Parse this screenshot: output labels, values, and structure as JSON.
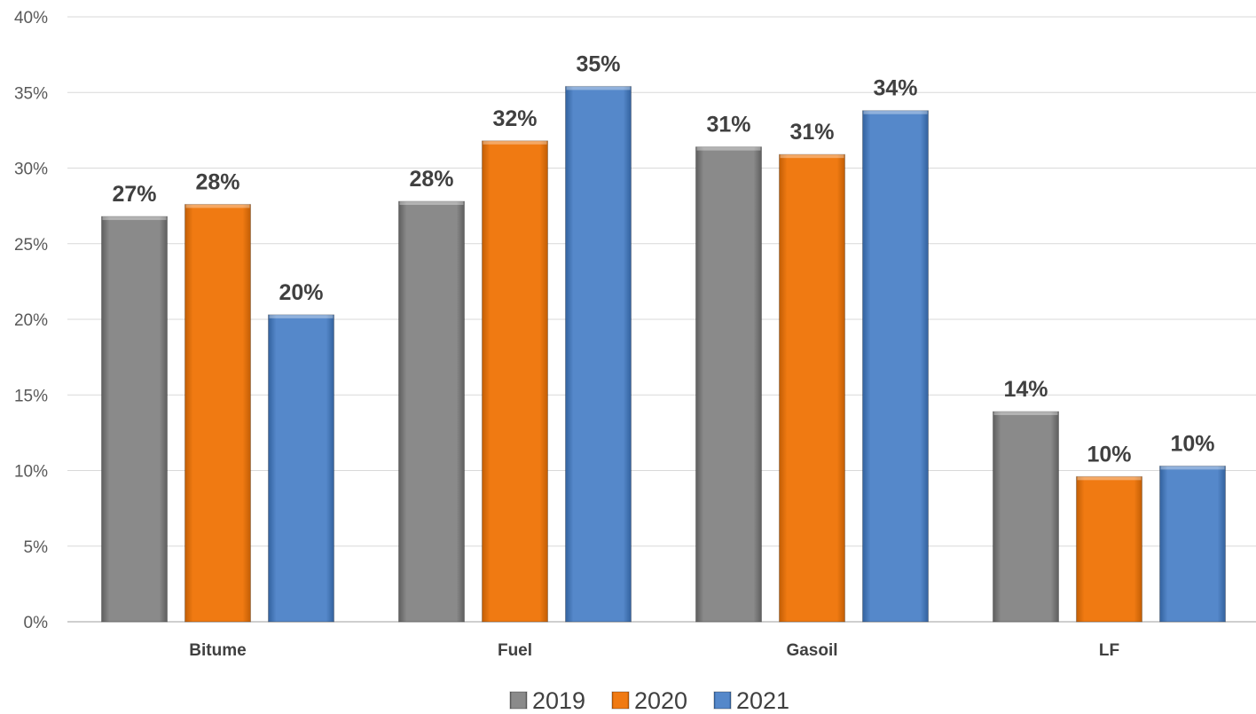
{
  "chart_data": {
    "type": "bar",
    "categories": [
      "Bitume",
      "Fuel",
      "Gasoil",
      "LF"
    ],
    "series": [
      {
        "name": "2019",
        "color": "#7f7f7f",
        "values": [
          0.268,
          0.278,
          0.314,
          0.139
        ],
        "labels": [
          "27%",
          "28%",
          "31%",
          "14%"
        ]
      },
      {
        "name": "2020",
        "color": "#ed7d14",
        "values": [
          0.276,
          0.318,
          0.309,
          0.096
        ],
        "labels": [
          "28%",
          "32%",
          "31%",
          "10%"
        ]
      },
      {
        "name": "2021",
        "color": "#4f83c8",
        "values": [
          0.203,
          0.354,
          0.338,
          0.103
        ],
        "labels": [
          "20%",
          "35%",
          "34%",
          "10%"
        ]
      }
    ],
    "ylim": [
      0,
      0.4
    ],
    "y_ticks": [
      "0%",
      "5%",
      "10%",
      "15%",
      "20%",
      "25%",
      "30%",
      "35%",
      "40%"
    ],
    "title": "",
    "xlabel": "",
    "ylabel": "",
    "grid": true,
    "legend_position": "bottom"
  }
}
